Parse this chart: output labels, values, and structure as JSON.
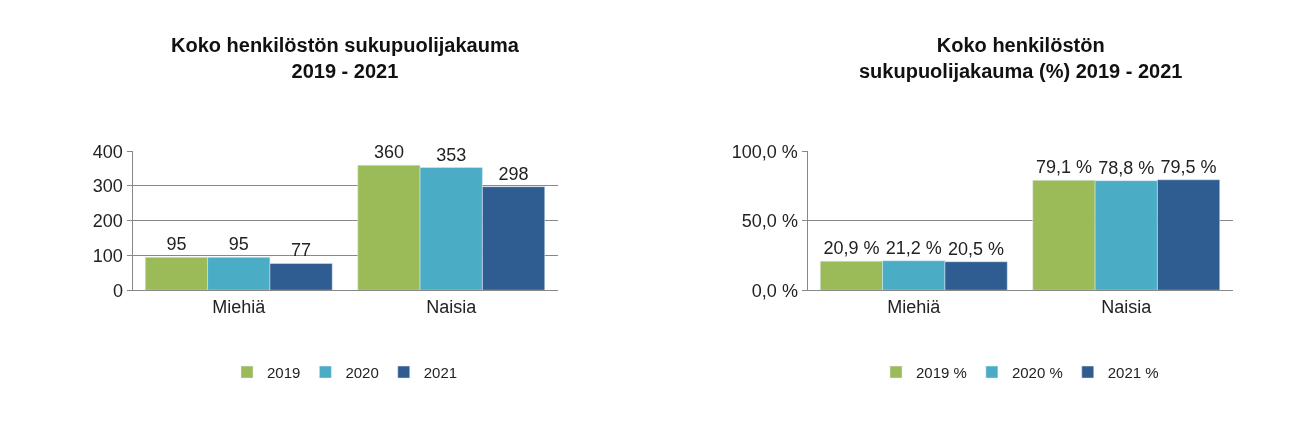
{
  "chart_data": [
    {
      "type": "bar",
      "title": "Koko henkilöstön sukupuolijakauma\n2019 - 2021",
      "categories": [
        "Miehiä",
        "Naisia"
      ],
      "series": [
        {
          "name": "2019",
          "color": "#9bbb59",
          "values": [
            95,
            360
          ]
        },
        {
          "name": "2020",
          "color": "#4bacc6",
          "values": [
            95,
            353
          ]
        },
        {
          "name": "2021",
          "color": "#2f5d91",
          "values": [
            77,
            298
          ]
        }
      ],
      "ylim": [
        0,
        400
      ],
      "yticks": [
        0,
        100,
        200,
        300,
        400
      ],
      "grid": "y",
      "legend": "bottom",
      "data_labels": true
    },
    {
      "type": "bar",
      "title": "Koko henkilöstön\nsukupuolijakauma (%) 2019 - 2021",
      "categories": [
        "Miehiä",
        "Naisia"
      ],
      "series": [
        {
          "name": "2019 %",
          "color": "#9bbb59",
          "values": [
            20.9,
            79.1
          ],
          "value_labels": [
            "20,9 %",
            "79,1 %"
          ]
        },
        {
          "name": "2020 %",
          "color": "#4bacc6",
          "values": [
            21.2,
            78.8
          ],
          "value_labels": [
            "21,2 %",
            "78,8 %"
          ]
        },
        {
          "name": "2021 %",
          "color": "#2f5d91",
          "values": [
            20.5,
            79.5
          ],
          "value_labels": [
            "20,5 %",
            "79,5 %"
          ]
        }
      ],
      "ylim": [
        0,
        100
      ],
      "yticks": [
        {
          "value": 0,
          "label": "0,0 %"
        },
        {
          "value": 50,
          "label": "50,0 %"
        },
        {
          "value": 100,
          "label": "100,0 %"
        }
      ],
      "grid": "y",
      "legend": "bottom"
    }
  ]
}
